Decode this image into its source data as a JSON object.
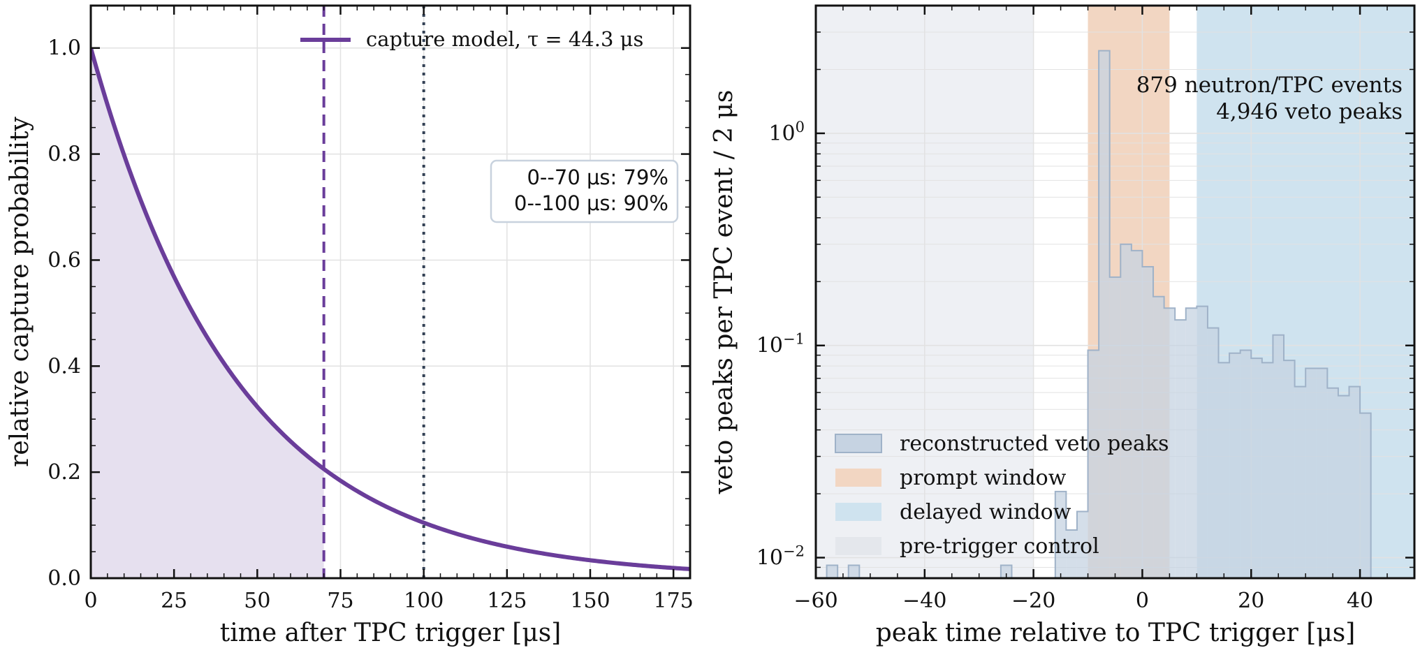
{
  "colors": {
    "model": "#6a3d9a",
    "model_fill": "#e6e0ef",
    "dotted_line": "#334155",
    "hist_fill": "#c6d3e2",
    "hist_edge": "#9fb2c8",
    "prompt": "#f2d6c2",
    "delayed": "#cfe3ef",
    "pretrigger": "#eef0f4",
    "grid": "#e2e2e2",
    "axis": "#111111"
  },
  "chart_data": [
    {
      "type": "line",
      "xlabel": "time after TPC trigger [μs]",
      "ylabel": "relative capture probability",
      "xlim": [
        0,
        180
      ],
      "ylim": [
        0,
        1.08
      ],
      "xticks": [
        0,
        25,
        50,
        75,
        100,
        125,
        150,
        175
      ],
      "yticks": [
        0.0,
        0.2,
        0.4,
        0.6,
        0.8,
        1.0
      ],
      "xtick_labels": [
        "0",
        "25",
        "50",
        "75",
        "100",
        "125",
        "150",
        "175"
      ],
      "ytick_labels": [
        "0.0",
        "0.2",
        "0.4",
        "0.6",
        "0.8",
        "1.0"
      ],
      "grid": true,
      "model": {
        "tau": 44.3,
        "shaded_range": [
          0,
          70
        ]
      },
      "vlines": [
        {
          "x": 70,
          "style": "dashed"
        },
        {
          "x": 100,
          "style": "dotted"
        }
      ],
      "legend": {
        "placement": "top-right",
        "label_text": "capture model, ",
        "label_tau": "τ = 44.3 μs"
      },
      "annotation": {
        "placement": "right",
        "lines": [
          "0--70 μs: 79%",
          "0--100 μs: 90%"
        ]
      }
    },
    {
      "type": "histogram",
      "xlabel": "peak time relative to TPC trigger [μs]",
      "ylabel": "veto peaks per TPC event / 2 μs",
      "yscale": "log",
      "xlim": [
        -60,
        50
      ],
      "ylim": [
        0.008,
        4.0
      ],
      "xticks": [
        -60,
        -40,
        -20,
        0,
        20,
        40
      ],
      "xtick_labels": [
        "−60",
        "−40",
        "−20",
        "0",
        "20",
        "40"
      ],
      "yticks_major": [
        0.01,
        0.1,
        1
      ],
      "ytick_labels": [
        "10−2",
        "10−1",
        "100"
      ],
      "grid": true,
      "bin_width": 2,
      "bins": [
        {
          "x0": -60,
          "x1": -58,
          "value": 0
        },
        {
          "x0": -58,
          "x1": -56,
          "value": 0.0092
        },
        {
          "x0": -56,
          "x1": -54,
          "value": 0
        },
        {
          "x0": -54,
          "x1": -52,
          "value": 0.0092
        },
        {
          "x0": -52,
          "x1": -50,
          "value": 0
        },
        {
          "x0": -50,
          "x1": -48,
          "value": 0
        },
        {
          "x0": -48,
          "x1": -46,
          "value": 0
        },
        {
          "x0": -46,
          "x1": -44,
          "value": 0
        },
        {
          "x0": -44,
          "x1": -42,
          "value": 0
        },
        {
          "x0": -42,
          "x1": -40,
          "value": 0
        },
        {
          "x0": -40,
          "x1": -38,
          "value": 0
        },
        {
          "x0": -38,
          "x1": -36,
          "value": 0
        },
        {
          "x0": -36,
          "x1": -34,
          "value": 0
        },
        {
          "x0": -34,
          "x1": -32,
          "value": 0
        },
        {
          "x0": -32,
          "x1": -30,
          "value": 0
        },
        {
          "x0": -30,
          "x1": -28,
          "value": 0
        },
        {
          "x0": -28,
          "x1": -26,
          "value": 0
        },
        {
          "x0": -26,
          "x1": -24,
          "value": 0.0092
        },
        {
          "x0": -24,
          "x1": -22,
          "value": 0
        },
        {
          "x0": -22,
          "x1": -20,
          "value": 0
        },
        {
          "x0": -20,
          "x1": -18,
          "value": 0
        },
        {
          "x0": -18,
          "x1": -16,
          "value": 0
        },
        {
          "x0": -16,
          "x1": -14,
          "value": 0.0205
        },
        {
          "x0": -14,
          "x1": -12,
          "value": 0.0135
        },
        {
          "x0": -12,
          "x1": -10,
          "value": 0.0165
        },
        {
          "x0": -10,
          "x1": -8,
          "value": 0.095
        },
        {
          "x0": -8,
          "x1": -6,
          "value": 2.45
        },
        {
          "x0": -6,
          "x1": -4,
          "value": 0.21
        },
        {
          "x0": -4,
          "x1": -2,
          "value": 0.3
        },
        {
          "x0": -2,
          "x1": 0,
          "value": 0.28
        },
        {
          "x0": 0,
          "x1": 2,
          "value": 0.235
        },
        {
          "x0": 2,
          "x1": 4,
          "value": 0.17
        },
        {
          "x0": 4,
          "x1": 6,
          "value": 0.15
        },
        {
          "x0": 6,
          "x1": 8,
          "value": 0.132
        },
        {
          "x0": 8,
          "x1": 10,
          "value": 0.15
        },
        {
          "x0": 10,
          "x1": 12,
          "value": 0.153
        },
        {
          "x0": 12,
          "x1": 14,
          "value": 0.121
        },
        {
          "x0": 14,
          "x1": 16,
          "value": 0.083
        },
        {
          "x0": 16,
          "x1": 18,
          "value": 0.092
        },
        {
          "x0": 18,
          "x1": 20,
          "value": 0.095
        },
        {
          "x0": 20,
          "x1": 22,
          "value": 0.087
        },
        {
          "x0": 22,
          "x1": 24,
          "value": 0.083
        },
        {
          "x0": 24,
          "x1": 26,
          "value": 0.112
        },
        {
          "x0": 26,
          "x1": 28,
          "value": 0.085
        },
        {
          "x0": 28,
          "x1": 30,
          "value": 0.064
        },
        {
          "x0": 30,
          "x1": 32,
          "value": 0.078
        },
        {
          "x0": 32,
          "x1": 34,
          "value": 0.078
        },
        {
          "x0": 34,
          "x1": 36,
          "value": 0.063
        },
        {
          "x0": 36,
          "x1": 38,
          "value": 0.058
        },
        {
          "x0": 38,
          "x1": 40,
          "value": 0.064
        },
        {
          "x0": 40,
          "x1": 42,
          "value": 0.048
        }
      ],
      "windows": [
        {
          "name": "pre-trigger control",
          "range": [
            -60,
            -20
          ]
        },
        {
          "name": "prompt window",
          "range": [
            -10,
            5
          ]
        },
        {
          "name": "delayed window",
          "range": [
            10,
            50
          ]
        }
      ],
      "legend": {
        "placement": "lower-left",
        "entries": [
          "reconstructed veto peaks",
          "prompt window",
          "delayed window",
          "pre-trigger control"
        ]
      },
      "annotation": {
        "placement": "top-right",
        "lines": [
          "879 neutron/TPC events",
          "4,946 veto peaks"
        ]
      }
    }
  ]
}
